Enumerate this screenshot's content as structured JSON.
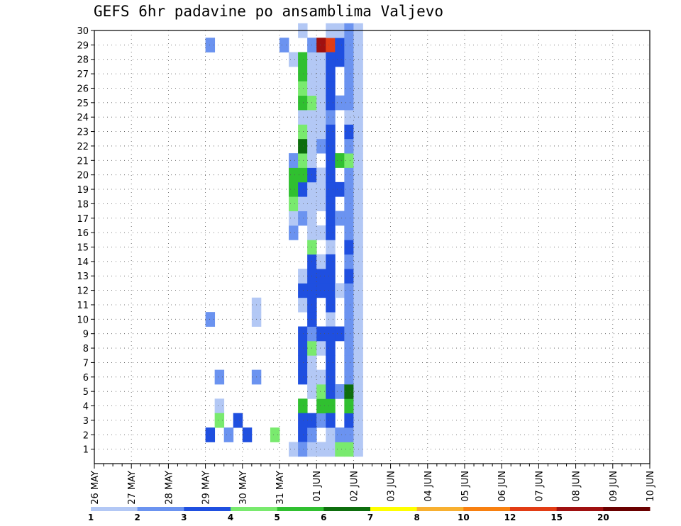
{
  "title": "GEFS 6hr padavine po ansamblima Valjevo",
  "chart_data": {
    "type": "heatmap",
    "title": "GEFS 6hr padavine po ansamblima Valjevo",
    "x_tick_labels": [
      "26 MAY",
      "27 MAY",
      "28 MAY",
      "29 MAY",
      "30 MAY",
      "31 MAY",
      "01 JUN",
      "02 JUN",
      "03 JUN",
      "04 JUN",
      "05 JUN",
      "06 JUN",
      "07 JUN",
      "08 JUN",
      "09 JUN",
      "10 JUN"
    ],
    "y_tick_labels": [
      "1",
      "2",
      "3",
      "4",
      "5",
      "6",
      "7",
      "8",
      "9",
      "10",
      "11",
      "12",
      "13",
      "14",
      "15",
      "16",
      "17",
      "18",
      "19",
      "20",
      "21",
      "22",
      "23",
      "24",
      "25",
      "26",
      "27",
      "28",
      "29",
      "30"
    ],
    "xlim": [
      0,
      60
    ],
    "ylim": [
      0,
      30
    ],
    "x_unit": "6-hour step from 26 MAY 00Z",
    "grid": true,
    "colorbar": {
      "labels": [
        "1",
        "2",
        "3",
        "4",
        "5",
        "6",
        "7",
        "8",
        "10",
        "12",
        "15",
        "20"
      ],
      "colors": [
        "#b3c8f5",
        "#6b93f0",
        "#1f4fe0",
        "#79ea6e",
        "#30c030",
        "#0d6e0d",
        "#ffff00",
        "#f8b030",
        "#f88010",
        "#e23c14",
        "#a01010",
        "#6a0000"
      ]
    },
    "cells": [
      [
        12,
        2,
        3
      ],
      [
        12,
        10,
        2
      ],
      [
        12,
        29,
        2
      ],
      [
        13,
        4,
        1
      ],
      [
        13,
        3,
        4
      ],
      [
        13,
        6,
        2
      ],
      [
        14,
        2,
        2
      ],
      [
        15,
        3,
        3
      ],
      [
        16,
        2,
        3
      ],
      [
        17,
        11,
        1
      ],
      [
        17,
        10,
        1
      ],
      [
        17,
        6,
        2
      ],
      [
        19,
        2,
        4
      ],
      [
        20,
        29,
        2
      ],
      [
        21,
        1,
        1
      ],
      [
        21,
        16,
        2
      ],
      [
        21,
        17,
        1
      ],
      [
        21,
        18,
        4
      ],
      [
        21,
        19,
        5
      ],
      [
        21,
        20,
        5
      ],
      [
        21,
        21,
        2
      ],
      [
        21,
        28,
        1
      ],
      [
        22,
        2,
        3
      ],
      [
        22,
        4,
        5
      ],
      [
        22,
        3,
        3
      ],
      [
        22,
        6,
        3
      ],
      [
        22,
        7,
        3
      ],
      [
        22,
        8,
        3
      ],
      [
        22,
        9,
        3
      ],
      [
        22,
        11,
        1
      ],
      [
        22,
        12,
        3
      ],
      [
        22,
        17,
        2
      ],
      [
        22,
        18,
        1
      ],
      [
        22,
        19,
        3
      ],
      [
        22,
        20,
        5
      ],
      [
        22,
        21,
        4
      ],
      [
        22,
        22,
        6
      ],
      [
        22,
        23,
        4
      ],
      [
        22,
        24,
        1
      ],
      [
        22,
        25,
        5
      ],
      [
        22,
        26,
        4
      ],
      [
        22,
        27,
        5
      ],
      [
        22,
        28,
        5
      ],
      [
        22,
        30,
        1
      ],
      [
        22,
        1,
        2
      ],
      [
        22,
        13,
        1
      ],
      [
        23,
        1,
        1
      ],
      [
        23,
        2,
        2
      ],
      [
        23,
        3,
        3
      ],
      [
        23,
        5,
        1
      ],
      [
        23,
        6,
        1
      ],
      [
        23,
        7,
        1
      ],
      [
        23,
        8,
        4
      ],
      [
        23,
        9,
        2
      ],
      [
        23,
        10,
        3
      ],
      [
        23,
        11,
        3
      ],
      [
        23,
        12,
        3
      ],
      [
        23,
        13,
        3
      ],
      [
        23,
        14,
        3
      ],
      [
        23,
        15,
        4
      ],
      [
        23,
        16,
        1
      ],
      [
        23,
        17,
        1
      ],
      [
        23,
        18,
        1
      ],
      [
        23,
        19,
        1
      ],
      [
        23,
        20,
        3
      ],
      [
        23,
        21,
        1
      ],
      [
        23,
        22,
        1
      ],
      [
        23,
        23,
        1
      ],
      [
        23,
        24,
        1
      ],
      [
        23,
        25,
        4
      ],
      [
        23,
        26,
        1
      ],
      [
        23,
        27,
        1
      ],
      [
        23,
        28,
        1
      ],
      [
        23,
        29,
        2
      ],
      [
        24,
        1,
        1
      ],
      [
        24,
        3,
        2
      ],
      [
        24,
        4,
        5
      ],
      [
        24,
        5,
        4
      ],
      [
        24,
        6,
        1
      ],
      [
        24,
        8,
        1
      ],
      [
        24,
        9,
        3
      ],
      [
        24,
        12,
        3
      ],
      [
        24,
        13,
        3
      ],
      [
        24,
        14,
        1
      ],
      [
        24,
        16,
        1
      ],
      [
        24,
        18,
        1
      ],
      [
        24,
        19,
        1
      ],
      [
        24,
        20,
        1
      ],
      [
        24,
        22,
        2
      ],
      [
        24,
        23,
        1
      ],
      [
        24,
        24,
        1
      ],
      [
        24,
        25,
        1
      ],
      [
        24,
        26,
        1
      ],
      [
        24,
        27,
        1
      ],
      [
        24,
        28,
        1
      ],
      [
        24,
        29,
        11
      ],
      [
        25,
        4,
        5
      ],
      [
        25,
        29,
        10
      ],
      [
        25,
        30,
        1
      ],
      [
        25,
        1,
        1
      ],
      [
        25,
        2,
        1
      ],
      [
        25,
        10,
        1
      ],
      [
        25,
        15,
        1
      ],
      [
        25,
        18,
        3
      ],
      [
        25,
        21,
        3
      ],
      [
        25,
        22,
        3
      ],
      [
        25,
        23,
        3
      ],
      [
        25,
        24,
        2
      ],
      [
        25,
        25,
        3
      ],
      [
        25,
        26,
        3
      ],
      [
        25,
        27,
        3
      ],
      [
        25,
        28,
        3
      ],
      [
        25,
        16,
        3
      ],
      [
        25,
        17,
        3
      ],
      [
        25,
        19,
        3
      ],
      [
        25,
        20,
        3
      ],
      [
        25,
        3,
        3
      ],
      [
        25,
        5,
        3
      ],
      [
        25,
        6,
        3
      ],
      [
        25,
        7,
        3
      ],
      [
        25,
        8,
        3
      ],
      [
        25,
        9,
        3
      ],
      [
        25,
        11,
        3
      ],
      [
        25,
        12,
        3
      ],
      [
        25,
        13,
        3
      ],
      [
        25,
        14,
        3
      ],
      [
        26,
        1,
        4
      ],
      [
        26,
        21,
        5
      ],
      [
        26,
        29,
        3
      ],
      [
        26,
        30,
        1
      ],
      [
        26,
        2,
        2
      ],
      [
        26,
        5,
        2
      ],
      [
        26,
        9,
        3
      ],
      [
        26,
        12,
        1
      ],
      [
        26,
        17,
        2
      ],
      [
        26,
        19,
        3
      ],
      [
        26,
        25,
        2
      ],
      [
        26,
        28,
        3
      ],
      [
        27,
        1,
        4
      ],
      [
        27,
        2,
        2
      ],
      [
        27,
        3,
        3
      ],
      [
        27,
        4,
        5
      ],
      [
        27,
        5,
        6
      ],
      [
        27,
        6,
        2
      ],
      [
        27,
        7,
        2
      ],
      [
        27,
        8,
        2
      ],
      [
        27,
        9,
        2
      ],
      [
        27,
        10,
        2
      ],
      [
        27,
        11,
        2
      ],
      [
        27,
        12,
        2
      ],
      [
        27,
        13,
        3
      ],
      [
        27,
        14,
        2
      ],
      [
        27,
        15,
        3
      ],
      [
        27,
        16,
        2
      ],
      [
        27,
        17,
        2
      ],
      [
        27,
        18,
        2
      ],
      [
        27,
        19,
        2
      ],
      [
        27,
        20,
        2
      ],
      [
        27,
        21,
        4
      ],
      [
        27,
        22,
        2
      ],
      [
        27,
        23,
        3
      ],
      [
        27,
        24,
        1
      ],
      [
        27,
        25,
        2
      ],
      [
        27,
        26,
        2
      ],
      [
        27,
        27,
        2
      ],
      [
        27,
        28,
        2
      ],
      [
        27,
        29,
        2
      ],
      [
        27,
        30,
        2
      ],
      [
        28,
        1,
        1
      ],
      [
        28,
        2,
        1
      ],
      [
        28,
        3,
        1
      ],
      [
        28,
        4,
        1
      ],
      [
        28,
        5,
        1
      ],
      [
        28,
        6,
        1
      ],
      [
        28,
        7,
        1
      ],
      [
        28,
        8,
        1
      ],
      [
        28,
        9,
        1
      ],
      [
        28,
        10,
        1
      ],
      [
        28,
        11,
        1
      ],
      [
        28,
        12,
        1
      ],
      [
        28,
        13,
        1
      ],
      [
        28,
        14,
        1
      ],
      [
        28,
        15,
        1
      ],
      [
        28,
        16,
        1
      ],
      [
        28,
        17,
        1
      ],
      [
        28,
        18,
        1
      ],
      [
        28,
        19,
        1
      ],
      [
        28,
        20,
        1
      ],
      [
        28,
        21,
        1
      ],
      [
        28,
        22,
        1
      ],
      [
        28,
        23,
        1
      ],
      [
        28,
        24,
        1
      ],
      [
        28,
        25,
        1
      ],
      [
        28,
        26,
        1
      ],
      [
        28,
        27,
        1
      ],
      [
        28,
        28,
        1
      ],
      [
        28,
        29,
        1
      ],
      [
        28,
        30,
        1
      ]
    ]
  }
}
